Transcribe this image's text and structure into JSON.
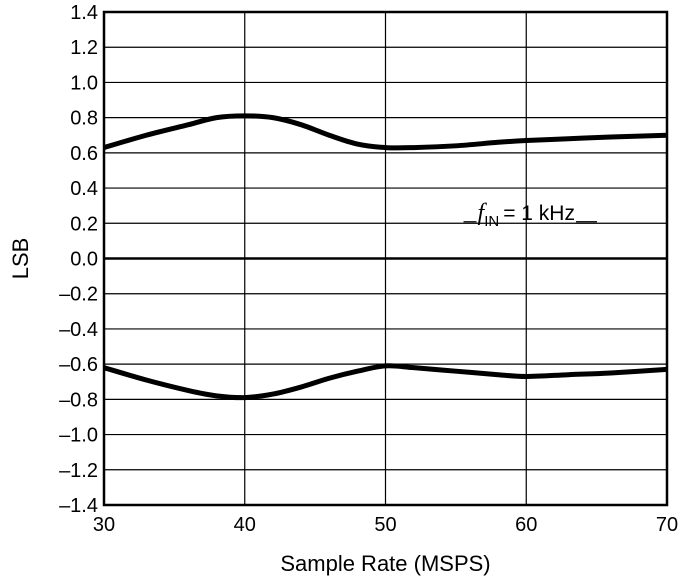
{
  "chart_data": {
    "type": "line",
    "title": "",
    "xlabel": "Sample Rate (MSPS)",
    "ylabel": "LSB",
    "xlim": [
      30,
      70
    ],
    "ylim": [
      -1.4,
      1.4
    ],
    "x_ticks": [
      30,
      40,
      50,
      60,
      70
    ],
    "x_tick_labels": [
      "30",
      "40",
      "50",
      "60",
      "70"
    ],
    "y_ticks": [
      1.4,
      1.2,
      1.0,
      0.8,
      0.6,
      0.4,
      0.2,
      0.0,
      -0.2,
      -0.4,
      -0.6,
      -0.8,
      -1.0,
      -1.2,
      -1.4
    ],
    "y_tick_labels": [
      "1.4",
      "1.2",
      "1.0",
      "0.8",
      "0.6",
      "0.4",
      "0.2",
      "0.0",
      "–0.2",
      "–0.4",
      "–0.6",
      "–0.8",
      "–1.0",
      "–1.2",
      "–1.4"
    ],
    "grid": true,
    "series": [
      {
        "x": [
          30,
          33,
          36,
          38,
          40,
          42,
          44,
          46,
          48,
          50,
          52,
          55,
          58,
          60,
          63,
          66,
          70
        ],
        "y": [
          0.63,
          0.7,
          0.76,
          0.8,
          0.81,
          0.8,
          0.76,
          0.7,
          0.65,
          0.63,
          0.63,
          0.64,
          0.66,
          0.67,
          0.68,
          0.69,
          0.7
        ]
      },
      {
        "x": [
          30,
          33,
          36,
          38,
          40,
          42,
          44,
          46,
          48,
          50,
          52,
          55,
          58,
          60,
          63,
          66,
          70
        ],
        "y": [
          -0.62,
          -0.69,
          -0.75,
          -0.78,
          -0.79,
          -0.77,
          -0.73,
          -0.68,
          -0.64,
          -0.61,
          -0.62,
          -0.64,
          -0.66,
          -0.67,
          -0.66,
          -0.65,
          -0.63
        ]
      }
    ],
    "annotation": {
      "symbol": "f",
      "subscript": "IN",
      "text": "= 1 kHz",
      "x": 60,
      "y": 0.22
    },
    "line_color": "#000000"
  }
}
